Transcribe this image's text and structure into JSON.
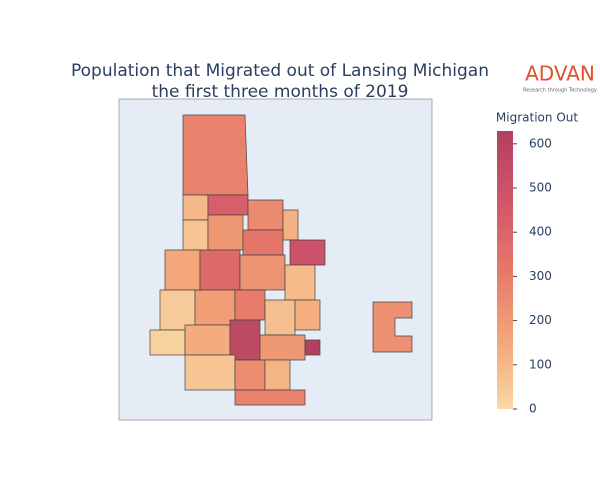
{
  "chart_data": {
    "type": "choropleth",
    "title_lines": [
      "Population that Migrated out of Lansing Michigan",
      "the first three months of 2019"
    ],
    "logo": {
      "name": "ADVAN",
      "tagline": "Research through Technology"
    },
    "values": [
      280,
      100,
      430,
      250,
      120,
      60,
      200,
      330,
      500,
      150,
      380,
      220,
      90,
      40,
      180,
      300,
      80,
      130,
      20,
      140,
      560,
      200,
      629,
      60,
      240,
      110,
      280,
      230
    ],
    "colorbar": {
      "title": "Migration Out",
      "range": [
        0,
        629
      ],
      "ticks": [
        0,
        100,
        200,
        300,
        400,
        500,
        600
      ],
      "colorscale": [
        "#f8d8a4",
        "#f3a578",
        "#e67869",
        "#d0566a",
        "#b2405f"
      ]
    }
  }
}
